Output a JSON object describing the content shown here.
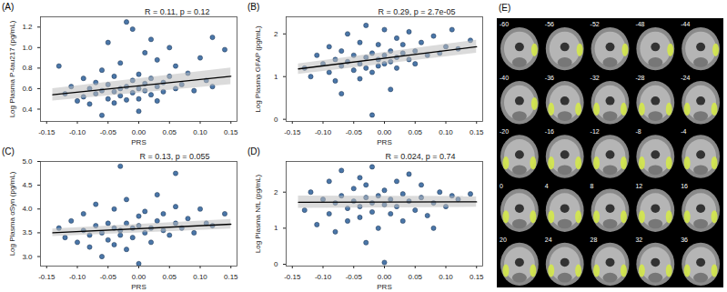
{
  "chart_data": [
    {
      "type": "scatter",
      "title": "(A)",
      "annotation": "R = 0.11, p = 0.12",
      "x_label": "PRS",
      "y_label": "Log Plasma P-tau217 (pg/mL)",
      "color": "#4a76a8",
      "xlim": [
        -0.16,
        0.16
      ],
      "xticks": [
        {
          "value": -0.15,
          "label": "-0.15"
        },
        {
          "value": -0.1,
          "label": "-0.10"
        },
        {
          "value": -0.05,
          "label": "-0.05"
        },
        {
          "value": 0,
          "label": "0.00"
        },
        {
          "value": 0.05,
          "label": "0.05"
        },
        {
          "value": 0.1,
          "label": "0.10"
        },
        {
          "value": 0.15,
          "label": "0.15"
        }
      ],
      "ylim": [
        0.28,
        1.3
      ],
      "yticks": [
        0.4,
        0.6,
        0.8,
        {
          "value": 1,
          "label": "1.0"
        },
        1.2
      ],
      "x": [
        -0.13,
        -0.12,
        -0.11,
        -0.1,
        -0.09,
        -0.09,
        -0.08,
        -0.08,
        -0.07,
        -0.07,
        -0.06,
        -0.06,
        -0.05,
        -0.05,
        -0.05,
        -0.04,
        -0.04,
        -0.04,
        -0.03,
        -0.03,
        -0.03,
        -0.02,
        -0.02,
        -0.02,
        -0.01,
        -0.01,
        -0.01,
        0.0,
        0.0,
        0.0,
        0.01,
        0.01,
        0.01,
        0.02,
        0.02,
        0.02,
        0.03,
        0.03,
        0.03,
        0.04,
        0.04,
        0.05,
        0.05,
        0.06,
        0.06,
        0.07,
        0.08,
        0.09,
        0.1,
        0.11,
        0.12,
        0.14,
        0.12,
        -0.06,
        0.0
      ],
      "values": [
        0.82,
        0.55,
        0.62,
        0.48,
        0.7,
        0.52,
        0.6,
        0.45,
        0.66,
        0.55,
        0.58,
        0.78,
        0.5,
        0.64,
        1.05,
        0.57,
        0.72,
        0.46,
        0.6,
        0.85,
        0.53,
        1.25,
        0.62,
        0.49,
        0.68,
        0.56,
        1.18,
        0.6,
        0.74,
        0.5,
        0.58,
        0.95,
        0.65,
        0.54,
        0.7,
        1.08,
        0.62,
        0.48,
        0.88,
        0.66,
        0.57,
        0.72,
        1.0,
        0.6,
        0.82,
        0.64,
        0.75,
        0.58,
        0.9,
        0.68,
        0.62,
        0.98,
        1.1,
        0.34,
        0.38
      ],
      "fit": {
        "x": [
          -0.14,
          0.15
        ],
        "values": [
          0.54,
          0.72
        ],
        "lower": [
          0.48,
          0.64
        ],
        "upper": [
          0.6,
          0.8
        ]
      }
    },
    {
      "type": "scatter",
      "title": "(B)",
      "annotation": "R = 0.29, p = 2.7e-05",
      "x_label": "PRS",
      "y_label": "Log Plasma GFAP (pg/mL)",
      "color": "#4a76a8",
      "xlim": [
        -0.16,
        0.16
      ],
      "xticks": [
        {
          "value": -0.15,
          "label": "-0.15"
        },
        {
          "value": -0.1,
          "label": "-0.10"
        },
        {
          "value": -0.05,
          "label": "-0.05"
        },
        {
          "value": 0,
          "label": "0.00"
        },
        {
          "value": 0.05,
          "label": "0.05"
        },
        {
          "value": 0.1,
          "label": "0.10"
        },
        {
          "value": 0.15,
          "label": "0.15"
        }
      ],
      "ylim": [
        -0.05,
        2.4
      ],
      "yticks": [
        0,
        1,
        2
      ],
      "x": [
        -0.13,
        -0.12,
        -0.11,
        -0.1,
        -0.09,
        -0.09,
        -0.08,
        -0.08,
        -0.07,
        -0.07,
        -0.06,
        -0.06,
        -0.05,
        -0.05,
        -0.04,
        -0.04,
        -0.04,
        -0.03,
        -0.03,
        -0.03,
        -0.02,
        -0.02,
        -0.02,
        -0.01,
        -0.01,
        -0.01,
        0.0,
        0.0,
        0.0,
        0.01,
        0.01,
        0.01,
        0.02,
        0.02,
        0.02,
        0.03,
        0.03,
        0.04,
        0.04,
        0.05,
        0.05,
        0.06,
        0.07,
        0.08,
        0.09,
        0.1,
        0.11,
        0.12,
        0.14,
        -0.07
      ],
      "values": [
        1.2,
        1.0,
        1.5,
        1.3,
        1.1,
        1.7,
        1.4,
        0.9,
        1.25,
        1.6,
        1.35,
        2.0,
        1.15,
        1.5,
        1.3,
        1.8,
        0.95,
        1.45,
        1.2,
        2.2,
        1.55,
        1.1,
        0.1,
        1.4,
        1.75,
        1.25,
        1.5,
        2.1,
        1.3,
        1.6,
        1.35,
        0.7,
        1.45,
        1.9,
        1.2,
        1.55,
        1.75,
        1.4,
        2.05,
        1.6,
        1.3,
        1.8,
        1.5,
        1.95,
        1.55,
        1.7,
        2.1,
        1.65,
        1.85,
        0.6
      ],
      "fit": {
        "x": [
          -0.14,
          0.15
        ],
        "values": [
          1.18,
          1.7
        ],
        "lower": [
          1.05,
          1.55
        ],
        "upper": [
          1.3,
          1.85
        ]
      }
    },
    {
      "type": "scatter",
      "title": "(C)",
      "annotation": "R = 0.13, p = 0.055",
      "x_label": "PRS",
      "y_label": "Log Plasma αSyn (pg/mL)",
      "color": "#4a76a8",
      "xlim": [
        -0.16,
        0.16
      ],
      "xticks": [
        {
          "value": -0.15,
          "label": "-0.15"
        },
        {
          "value": -0.1,
          "label": "-0.10"
        },
        {
          "value": -0.05,
          "label": "-0.05"
        },
        {
          "value": 0,
          "label": "0.00"
        },
        {
          "value": 0.05,
          "label": "0.05"
        },
        {
          "value": 0.1,
          "label": "0.10"
        },
        {
          "value": 0.15,
          "label": "0.15"
        }
      ],
      "ylim": [
        2.8,
        5.0
      ],
      "yticks": [
        {
          "value": 3,
          "label": "3.0"
        },
        3.5,
        {
          "value": 4,
          "label": "4.0"
        },
        4.5,
        {
          "value": 5,
          "label": "5.0"
        }
      ],
      "x": [
        -0.13,
        -0.12,
        -0.11,
        -0.1,
        -0.09,
        -0.09,
        -0.08,
        -0.08,
        -0.07,
        -0.07,
        -0.06,
        -0.06,
        -0.05,
        -0.05,
        -0.04,
        -0.04,
        -0.04,
        -0.03,
        -0.03,
        -0.03,
        -0.02,
        -0.02,
        -0.02,
        -0.01,
        -0.01,
        0.0,
        0.0,
        0.0,
        0.01,
        0.01,
        0.02,
        0.02,
        0.03,
        0.03,
        0.04,
        0.04,
        0.05,
        0.06,
        0.06,
        0.07,
        0.08,
        0.09,
        0.1,
        0.11,
        0.12,
        0.14,
        0.06
      ],
      "values": [
        3.6,
        3.4,
        3.75,
        3.3,
        3.55,
        3.9,
        3.45,
        3.2,
        3.65,
        4.1,
        3.5,
        3.0,
        3.7,
        3.35,
        3.6,
        4.0,
        3.25,
        3.55,
        4.9,
        3.45,
        3.7,
        3.15,
        4.2,
        3.6,
        3.4,
        3.65,
        3.85,
        2.85,
        3.5,
        3.95,
        3.6,
        3.3,
        3.75,
        4.3,
        3.55,
        3.9,
        3.45,
        3.7,
        4.05,
        3.6,
        3.8,
        3.5,
        4.0,
        3.7,
        3.65,
        3.9,
        4.75
      ],
      "fit": {
        "x": [
          -0.14,
          0.15
        ],
        "values": [
          3.5,
          3.68
        ],
        "lower": [
          3.42,
          3.58
        ],
        "upper": [
          3.58,
          3.78
        ]
      }
    },
    {
      "type": "scatter",
      "title": "(D)",
      "annotation": "R = 0.024, p = 0.74",
      "x_label": "PRS",
      "y_label": "Log Plasma NfL (pg/mL)",
      "color": "#4a76a8",
      "xlim": [
        -0.16,
        0.16
      ],
      "xticks": [
        {
          "value": -0.15,
          "label": "-0.15"
        },
        {
          "value": -0.1,
          "label": "-0.10"
        },
        {
          "value": -0.05,
          "label": "-0.05"
        },
        {
          "value": 0,
          "label": "0.00"
        },
        {
          "value": 0.05,
          "label": "0.05"
        },
        {
          "value": 0.1,
          "label": "0.10"
        },
        {
          "value": 0.15,
          "label": "0.15"
        }
      ],
      "ylim": [
        -0.05,
        2.85
      ],
      "yticks": [
        0,
        1,
        2
      ],
      "x": [
        -0.13,
        -0.12,
        -0.11,
        -0.1,
        -0.09,
        -0.09,
        -0.08,
        -0.08,
        -0.07,
        -0.07,
        -0.06,
        -0.06,
        -0.05,
        -0.05,
        -0.04,
        -0.04,
        -0.04,
        -0.03,
        -0.03,
        -0.03,
        -0.02,
        -0.02,
        -0.02,
        -0.01,
        -0.01,
        0.0,
        0.0,
        0.0,
        0.01,
        0.01,
        0.02,
        0.02,
        0.03,
        0.03,
        0.04,
        0.04,
        0.05,
        0.06,
        0.06,
        0.07,
        0.08,
        0.09,
        0.1,
        0.11,
        0.12,
        0.14,
        0.08
      ],
      "values": [
        1.5,
        2.0,
        1.1,
        1.8,
        1.4,
        2.3,
        1.7,
        0.9,
        1.9,
        2.6,
        1.55,
        1.2,
        2.1,
        1.75,
        1.3,
        2.4,
        1.6,
        1.85,
        0.6,
        2.2,
        1.7,
        1.45,
        2.7,
        1.9,
        1.0,
        1.65,
        2.05,
        0.05,
        1.8,
        1.4,
        2.3,
        1.6,
        1.95,
        1.2,
        1.75,
        2.5,
        1.5,
        1.85,
        2.2,
        1.35,
        1.7,
        2.0,
        1.6,
        1.9,
        1.8,
        1.95,
        1.0
      ],
      "fit": {
        "x": [
          -0.14,
          0.15
        ],
        "values": [
          1.72,
          1.73
        ],
        "lower": [
          1.55,
          1.58
        ],
        "upper": [
          1.89,
          1.88
        ]
      }
    },
    {
      "type": "brain_slices",
      "title": "(E)",
      "slice_labels": [
        -60,
        -56,
        -52,
        -48,
        -44,
        -40,
        -36,
        -32,
        -28,
        -24,
        -20,
        -16,
        -12,
        -8,
        -4,
        0,
        4,
        8,
        12,
        16,
        20,
        24,
        28,
        32,
        36
      ]
    }
  ]
}
